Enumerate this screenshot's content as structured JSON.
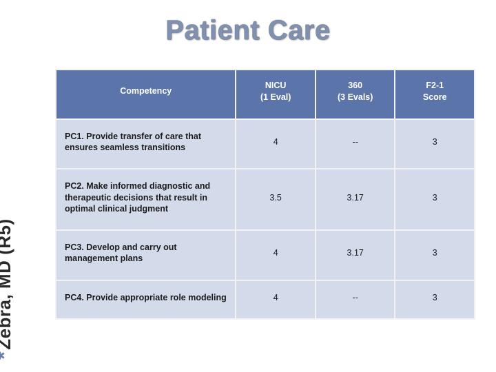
{
  "title": "Patient Care",
  "side_label": "Zebra, MD (R5)",
  "side_label_asterisk": "*",
  "colors": {
    "title_fill": "#8090b0",
    "header_bg": "#5b74aa",
    "header_text": "#ffffff",
    "cell_bg": "#d3daea",
    "cell_border": "#f2f2f2",
    "background": "#ffffff"
  },
  "table": {
    "type": "table",
    "column_widths_pct": [
      43,
      19,
      19,
      19
    ],
    "header": {
      "competency": "Competency",
      "nicu_line1": "NICU",
      "nicu_line2": "(1 Eval)",
      "s360_line1": "360",
      "s360_line2": "(3 Evals)",
      "f21_line1": "F2-1",
      "f21_line2": "Score"
    },
    "rows": [
      {
        "label": "PC1. Provide transfer of care that ensures seamless transitions",
        "nicu": "4",
        "s360": "--",
        "f21": "3"
      },
      {
        "label": "PC2. Make informed diagnostic and therapeutic decisions that result in optimal clinical judgment",
        "nicu": "3.5",
        "s360": "3.17",
        "f21": "3"
      },
      {
        "label": "PC3. Develop and carry out management plans",
        "nicu": "4",
        "s360": "3.17",
        "f21": "3"
      },
      {
        "label": "PC4. Provide appropriate role modeling",
        "nicu": "4",
        "s360": "--",
        "f21": "3"
      }
    ]
  }
}
